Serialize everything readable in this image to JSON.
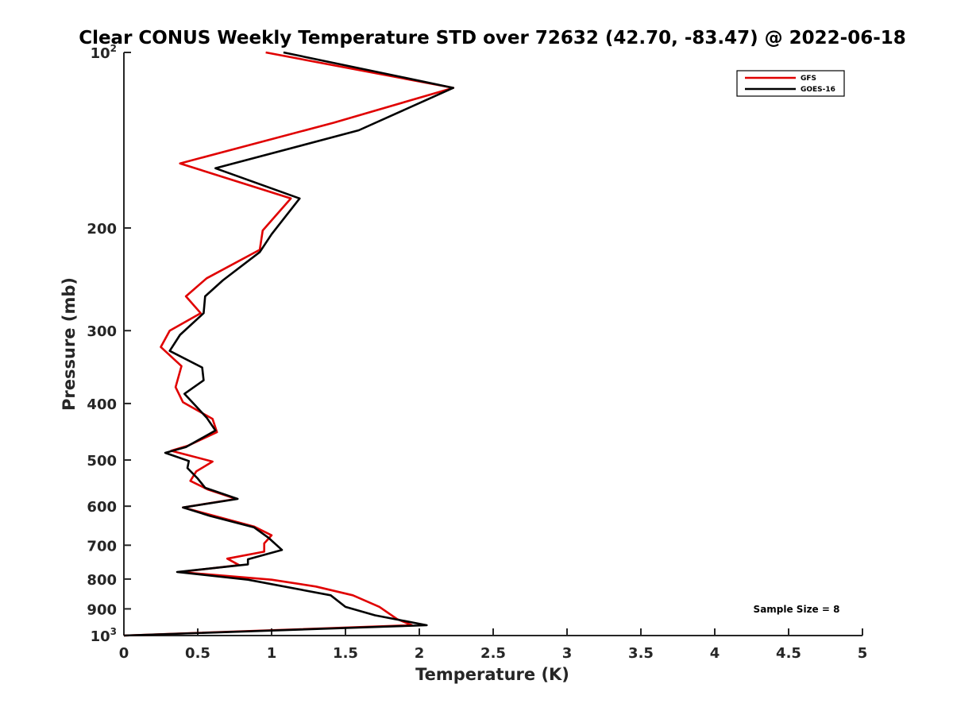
{
  "chart_data": {
    "type": "line",
    "title": "Clear CONUS Weekly Temperature STD over 72632 (42.70, -83.47) @ 2022-06-18",
    "xlabel": "Temperature (K)",
    "ylabel": "Pressure (mb)",
    "xlim": [
      0,
      5
    ],
    "ylim": [
      100,
      1000
    ],
    "y_scale": "log",
    "y_reversed": true,
    "grid": false,
    "legend_position": "top-right",
    "x_ticks": [
      "0",
      "0.5",
      "1",
      "1.5",
      "2",
      "2.5",
      "3",
      "3.5",
      "4",
      "4.5",
      "5"
    ],
    "x_tick_values": [
      0,
      0.5,
      1,
      1.5,
      2,
      2.5,
      3,
      3.5,
      4,
      4.5,
      5
    ],
    "y_ticks": [
      {
        "value": 100,
        "base": "10",
        "exp": "2"
      },
      {
        "value": 200,
        "base": "200",
        "exp": ""
      },
      {
        "value": 300,
        "base": "300",
        "exp": ""
      },
      {
        "value": 400,
        "base": "400",
        "exp": ""
      },
      {
        "value": 500,
        "base": "500",
        "exp": ""
      },
      {
        "value": 600,
        "base": "600",
        "exp": ""
      },
      {
        "value": 700,
        "base": "700",
        "exp": ""
      },
      {
        "value": 800,
        "base": "800",
        "exp": ""
      },
      {
        "value": 900,
        "base": "900",
        "exp": ""
      },
      {
        "value": 1000,
        "base": "10",
        "exp": "3"
      }
    ],
    "annotation": "Sample Size = 8",
    "series": [
      {
        "name": "GFS",
        "color": "#e00000",
        "points": [
          [
            0.96,
            100
          ],
          [
            2.23,
            115
          ],
          [
            1.42,
            132
          ],
          [
            0.38,
            155
          ],
          [
            1.13,
            178
          ],
          [
            0.94,
            202
          ],
          [
            0.92,
            218
          ],
          [
            0.56,
            244
          ],
          [
            0.42,
            262
          ],
          [
            0.52,
            280
          ],
          [
            0.31,
            300
          ],
          [
            0.25,
            320
          ],
          [
            0.39,
            345
          ],
          [
            0.35,
            375
          ],
          [
            0.4,
            398
          ],
          [
            0.6,
            425
          ],
          [
            0.63,
            448
          ],
          [
            0.43,
            473
          ],
          [
            0.32,
            482
          ],
          [
            0.6,
            503
          ],
          [
            0.49,
            523
          ],
          [
            0.45,
            543
          ],
          [
            0.57,
            562
          ],
          [
            0.76,
            583
          ],
          [
            0.4,
            603
          ],
          [
            0.61,
            623
          ],
          [
            0.88,
            650
          ],
          [
            1.0,
            673
          ],
          [
            0.95,
            695
          ],
          [
            0.95,
            718
          ],
          [
            0.7,
            738
          ],
          [
            0.78,
            757
          ],
          [
            0.38,
            778
          ],
          [
            1.0,
            802
          ],
          [
            1.3,
            824
          ],
          [
            1.55,
            853
          ],
          [
            1.73,
            893
          ],
          [
            1.85,
            937
          ],
          [
            1.95,
            960
          ],
          [
            0.0,
            1000
          ]
        ]
      },
      {
        "name": "GOES-16",
        "color": "#000000",
        "points": [
          [
            1.08,
            100
          ],
          [
            2.23,
            115
          ],
          [
            1.59,
            136
          ],
          [
            0.62,
            158
          ],
          [
            1.19,
            178
          ],
          [
            1.0,
            205
          ],
          [
            0.92,
            220
          ],
          [
            0.67,
            246
          ],
          [
            0.55,
            262
          ],
          [
            0.54,
            280
          ],
          [
            0.38,
            305
          ],
          [
            0.31,
            325
          ],
          [
            0.53,
            347
          ],
          [
            0.54,
            365
          ],
          [
            0.41,
            385
          ],
          [
            0.56,
            423
          ],
          [
            0.62,
            445
          ],
          [
            0.42,
            475
          ],
          [
            0.28,
            486
          ],
          [
            0.44,
            502
          ],
          [
            0.43,
            516
          ],
          [
            0.5,
            538
          ],
          [
            0.55,
            558
          ],
          [
            0.77,
            583
          ],
          [
            0.4,
            603
          ],
          [
            0.58,
            623
          ],
          [
            0.88,
            652
          ],
          [
            0.98,
            680
          ],
          [
            1.07,
            713
          ],
          [
            0.84,
            740
          ],
          [
            0.84,
            755
          ],
          [
            0.36,
            778
          ],
          [
            0.84,
            802
          ],
          [
            1.4,
            853
          ],
          [
            1.5,
            893
          ],
          [
            1.7,
            923
          ],
          [
            2.05,
            960
          ],
          [
            0.0,
            1000
          ]
        ]
      }
    ]
  }
}
